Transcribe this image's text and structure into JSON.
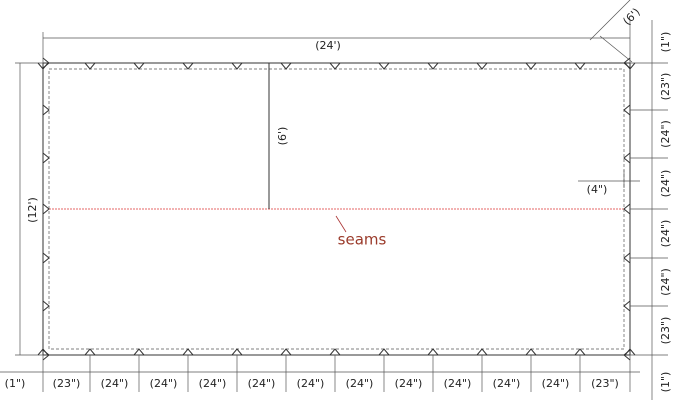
{
  "dimensions": {
    "overall_width": "(24')",
    "diagonal": "(6')",
    "overall_height": "(12')",
    "half_height": "(6')",
    "edge_offset": "(4\")"
  },
  "seam_label": "seams",
  "bottom_spacing": [
    "(1\")",
    "(23\")",
    "(24\")",
    "(24\")",
    "(24\")",
    "(24\")",
    "(24\")",
    "(24\")",
    "(24\")",
    "(24\")",
    "(24\")",
    "(24\")",
    "(23\")"
  ],
  "right_spacing": [
    "(1\")",
    "(23\")",
    "(24\")",
    "(24\")",
    "(24\")",
    "(24\")",
    "(23\")",
    "(1\")"
  ]
}
